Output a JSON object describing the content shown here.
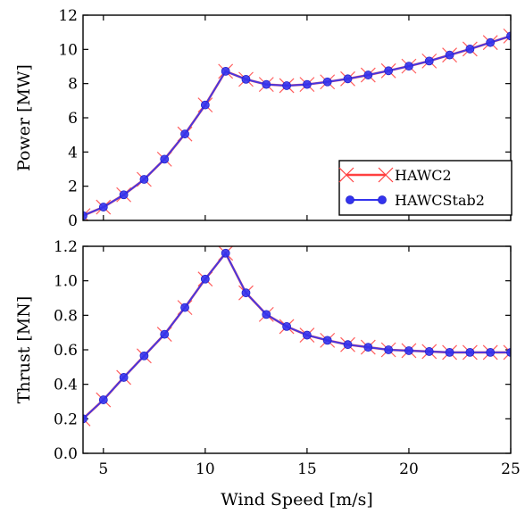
{
  "chart_data": [
    {
      "type": "line",
      "ylabel": "Power [MW]",
      "xlabel": "",
      "xlim": [
        4,
        25
      ],
      "ylim": [
        0,
        12
      ],
      "xticks": [
        5,
        10,
        15,
        20,
        25
      ],
      "yticks": [
        0,
        2,
        4,
        6,
        8,
        10,
        12
      ],
      "x_tick_labels_visible": false,
      "grid": false,
      "legend": "lower-right",
      "x": [
        4,
        5,
        6,
        7,
        8,
        9,
        10,
        11,
        12,
        13,
        14,
        15,
        16,
        17,
        18,
        19,
        20,
        21,
        22,
        23,
        24,
        25
      ],
      "series": [
        {
          "name": "HAWC2",
          "marker": "x",
          "color": "#ff4040",
          "values": [
            0.28,
            0.78,
            1.5,
            2.4,
            3.58,
            5.05,
            6.75,
            8.72,
            8.25,
            7.95,
            7.88,
            7.95,
            8.1,
            8.28,
            8.5,
            8.75,
            9.02,
            9.32,
            9.67,
            10.02,
            10.4,
            10.78
          ]
        },
        {
          "name": "HAWCStab2",
          "marker": "circle",
          "color": "#3333ee",
          "values": [
            0.28,
            0.78,
            1.5,
            2.4,
            3.58,
            5.05,
            6.75,
            8.72,
            8.25,
            7.95,
            7.88,
            7.95,
            8.1,
            8.28,
            8.5,
            8.75,
            9.02,
            9.32,
            9.67,
            10.02,
            10.4,
            10.78
          ]
        }
      ]
    },
    {
      "type": "line",
      "ylabel": "Thrust [MN]",
      "xlabel": "Wind Speed [m/s]",
      "xlim": [
        4,
        25
      ],
      "ylim": [
        0.0,
        1.2
      ],
      "xticks": [
        5,
        10,
        15,
        20,
        25
      ],
      "yticks": [
        0.0,
        0.2,
        0.4,
        0.6,
        0.8,
        1.0,
        1.2
      ],
      "ytick_labels": [
        "0.0",
        "0.2",
        "0.4",
        "0.6",
        "0.8",
        "1.0",
        "1.2"
      ],
      "grid": false,
      "x": [
        4,
        5,
        6,
        7,
        8,
        9,
        10,
        11,
        12,
        13,
        14,
        15,
        16,
        17,
        18,
        19,
        20,
        21,
        22,
        23,
        24,
        25
      ],
      "series": [
        {
          "name": "HAWC2",
          "marker": "x",
          "color": "#ff4040",
          "values": [
            0.2,
            0.31,
            0.44,
            0.565,
            0.69,
            0.845,
            1.01,
            1.16,
            0.93,
            0.805,
            0.735,
            0.685,
            0.655,
            0.63,
            0.615,
            0.6,
            0.595,
            0.59,
            0.585,
            0.585,
            0.585,
            0.585
          ]
        },
        {
          "name": "HAWCStab2",
          "marker": "circle",
          "color": "#3333ee",
          "values": [
            0.2,
            0.31,
            0.44,
            0.565,
            0.69,
            0.845,
            1.01,
            1.16,
            0.93,
            0.805,
            0.735,
            0.685,
            0.655,
            0.63,
            0.615,
            0.6,
            0.595,
            0.59,
            0.585,
            0.585,
            0.585,
            0.585
          ]
        }
      ]
    }
  ]
}
